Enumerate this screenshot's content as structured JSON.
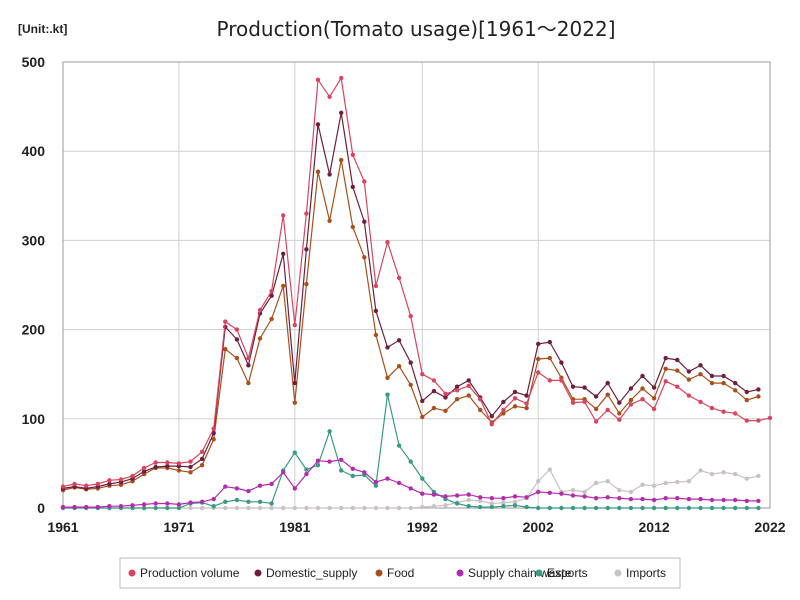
{
  "chart_data": {
    "type": "line",
    "title": "Production(Tomato usage)[1961～2022]",
    "unit_label": "[Unit:.kt]",
    "xlim": [
      1961,
      2022
    ],
    "ylim": [
      0,
      500
    ],
    "x_ticks": [
      1961,
      1971,
      1981,
      1992,
      2002,
      2012,
      2022
    ],
    "y_ticks": [
      0,
      100,
      200,
      300,
      400,
      500
    ],
    "legend": [
      "Production volume",
      "Domestic_supply",
      "Food",
      "Supply chain waste",
      "Exports",
      "Imports"
    ],
    "x": [
      1961,
      1962,
      1963,
      1964,
      1965,
      1966,
      1967,
      1968,
      1969,
      1970,
      1971,
      1972,
      1973,
      1974,
      1975,
      1976,
      1977,
      1978,
      1979,
      1980,
      1981,
      1982,
      1983,
      1984,
      1985,
      1986,
      1987,
      1988,
      1989,
      1990,
      1991,
      1992,
      1993,
      1994,
      1995,
      1996,
      1997,
      1998,
      1999,
      2000,
      2001,
      2002,
      2003,
      2004,
      2005,
      2006,
      2007,
      2008,
      2009,
      2010,
      2011,
      2012,
      2013,
      2014,
      2015,
      2016,
      2017,
      2018,
      2019,
      2020,
      2021,
      2022
    ],
    "series": [
      {
        "name": "Production volume",
        "color": "#d9455f",
        "values": [
          24,
          27,
          25,
          27,
          31,
          32,
          36,
          45,
          51,
          51,
          50,
          52,
          63,
          89,
          209,
          200,
          168,
          222,
          243,
          328,
          205,
          330,
          480,
          461,
          482,
          396,
          366,
          249,
          298,
          258,
          215,
          150,
          143,
          128,
          132,
          137,
          122,
          94,
          110,
          123,
          117,
          152,
          143,
          143,
          118,
          119,
          97,
          110,
          99,
          116,
          122,
          111,
          142,
          136,
          126,
          119,
          112,
          108,
          106,
          98,
          98,
          101
        ]
      },
      {
        "name": "Domestic_supply",
        "color": "#6e1f3c",
        "values": [
          22,
          24,
          22,
          24,
          27,
          29,
          33,
          41,
          46,
          47,
          47,
          46,
          55,
          84,
          203,
          189,
          160,
          218,
          238,
          285,
          140,
          290,
          430,
          374,
          443,
          360,
          321,
          221,
          180,
          188,
          163,
          120,
          131,
          124,
          136,
          143,
          124,
          103,
          119,
          130,
          126,
          184,
          186,
          163,
          136,
          135,
          125,
          140,
          118,
          134,
          148,
          135,
          168,
          166,
          153,
          160,
          148,
          148,
          140,
          130,
          133,
          null
        ]
      },
      {
        "name": "Food",
        "color": "#a8501c",
        "values": [
          20,
          23,
          21,
          22,
          25,
          26,
          30,
          38,
          45,
          45,
          42,
          40,
          48,
          77,
          178,
          168,
          140,
          190,
          212,
          249,
          118,
          251,
          377,
          322,
          390,
          315,
          281,
          194,
          146,
          159,
          138,
          102,
          112,
          109,
          122,
          126,
          110,
          96,
          106,
          114,
          112,
          167,
          168,
          146,
          122,
          122,
          111,
          127,
          106,
          121,
          134,
          123,
          156,
          154,
          144,
          150,
          140,
          140,
          132,
          121,
          125,
          null
        ]
      },
      {
        "name": "Supply chain waste",
        "color": "#b42bb0",
        "values": [
          1,
          1,
          1,
          1,
          2,
          2,
          3,
          4,
          5,
          5,
          4,
          6,
          7,
          10,
          24,
          22,
          19,
          25,
          27,
          40,
          22,
          38,
          53,
          52,
          54,
          44,
          40,
          29,
          33,
          28,
          22,
          16,
          15,
          13,
          14,
          15,
          12,
          11,
          11,
          13,
          12,
          18,
          17,
          16,
          14,
          13,
          11,
          12,
          11,
          10,
          10,
          9,
          11,
          11,
          10,
          10,
          9,
          9,
          9,
          8,
          8,
          null
        ]
      },
      {
        "name": "Exports",
        "color": "#3a9a84",
        "values": [
          0,
          0,
          0,
          0,
          0,
          0,
          0,
          0,
          0,
          0,
          0,
          5,
          6,
          2,
          7,
          9,
          7,
          7,
          5,
          42,
          62,
          43,
          48,
          86,
          42,
          36,
          37,
          25,
          127,
          70,
          52,
          33,
          18,
          10,
          5,
          2,
          1,
          1,
          2,
          3,
          1,
          0,
          0,
          0,
          0,
          0,
          0,
          0,
          0,
          0,
          0,
          0,
          0,
          0,
          0,
          0,
          0,
          0,
          0,
          0,
          0,
          null
        ]
      },
      {
        "name": "Imports",
        "color": "#c9c1c3",
        "values": [
          0,
          0,
          0,
          0,
          0,
          0,
          0,
          0,
          0,
          0,
          0,
          0,
          0,
          0,
          0,
          0,
          0,
          0,
          0,
          0,
          0,
          0,
          0,
          0,
          0,
          0,
          0,
          0,
          0,
          0,
          0,
          1,
          2,
          3,
          6,
          9,
          8,
          5,
          6,
          7,
          11,
          30,
          43,
          18,
          20,
          18,
          28,
          30,
          20,
          18,
          26,
          25,
          28,
          29,
          30,
          42,
          38,
          40,
          38,
          33,
          36,
          null
        ]
      }
    ]
  }
}
